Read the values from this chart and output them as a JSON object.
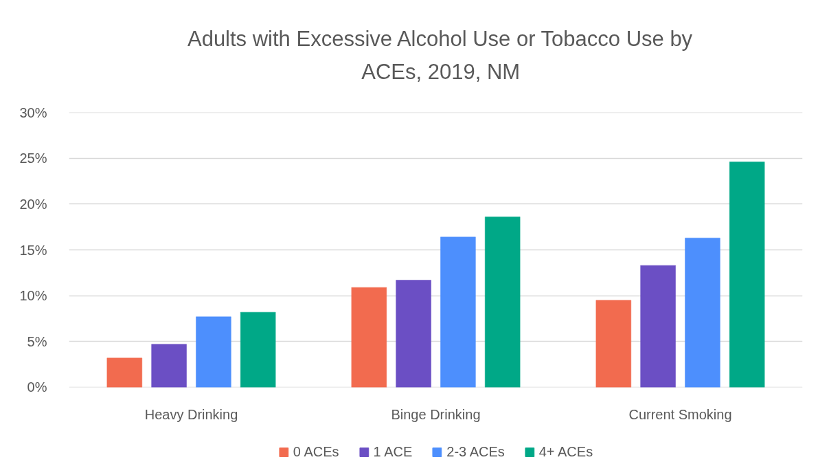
{
  "chart_data": {
    "type": "bar",
    "title": "Adults with Excessive Alcohol Use or Tobacco Use by ACEs, 2019, NM",
    "categories": [
      "Heavy Drinking",
      "Binge Drinking",
      "Current Smoking"
    ],
    "series": [
      {
        "name": "0 ACEs",
        "color": "#f26b4f",
        "values": [
          3.2,
          10.9,
          9.5
        ]
      },
      {
        "name": "1 ACE",
        "color": "#6b4fc4",
        "values": [
          4.7,
          11.7,
          13.3
        ]
      },
      {
        "name": "2-3 ACEs",
        "color": "#4d8ffd",
        "values": [
          7.7,
          16.4,
          16.3
        ]
      },
      {
        "name": "4+ ACEs",
        "color": "#00a887",
        "values": [
          8.2,
          18.6,
          24.6
        ]
      }
    ],
    "ylim": [
      0,
      30
    ],
    "yticks": [
      {
        "value": 0,
        "label": "0%"
      },
      {
        "value": 5,
        "label": "5%"
      },
      {
        "value": 10,
        "label": "10%"
      },
      {
        "value": 15,
        "label": "15%"
      },
      {
        "value": 20,
        "label": "20%"
      },
      {
        "value": 25,
        "label": "25%"
      },
      {
        "value": 30,
        "label": "30%"
      }
    ],
    "grid": "y",
    "legend": "bottom"
  }
}
